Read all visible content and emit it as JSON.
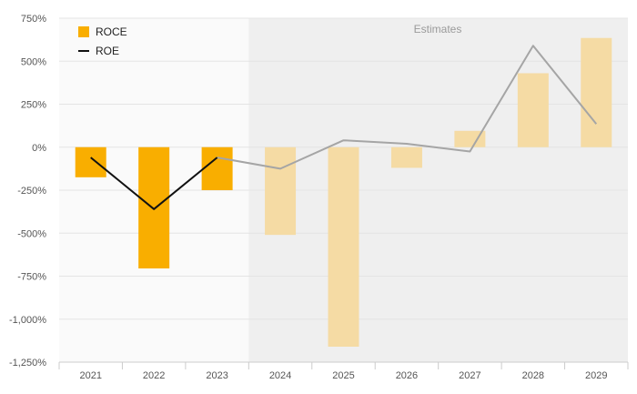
{
  "chart_data": {
    "type": "bar",
    "categories": [
      "2021",
      "2022",
      "2023",
      "2024",
      "2025",
      "2026",
      "2027",
      "2028",
      "2029"
    ],
    "series": [
      {
        "name": "ROCE",
        "kind": "bar",
        "values": [
          -175,
          -705,
          -250,
          -510,
          -1160,
          -120,
          95,
          430,
          635
        ]
      },
      {
        "name": "ROE",
        "kind": "line",
        "values": [
          -60,
          -360,
          -60,
          -125,
          40,
          20,
          -25,
          590,
          135
        ]
      }
    ],
    "ylim": [
      -1250,
      750
    ],
    "y_ticks": [
      750,
      500,
      250,
      0,
      -250,
      -500,
      -750,
      -1000,
      -1250
    ],
    "y_tick_labels": [
      "750%",
      "500%",
      "250%",
      "0%",
      "-250%",
      "-500%",
      "-750%",
      "-1,000%",
      "-1,250%"
    ],
    "estimates_label": "Estimates",
    "estimates_from_index": 3,
    "legend_position": "top-left",
    "grid": true,
    "colors": {
      "bar_actual": "#f9ae00",
      "bar_estimate": "#f5dba4",
      "line_actual": "#111111",
      "line_estimate": "#a5a5a5",
      "plot_background": "#fafafa",
      "estimates_background": "#efefef",
      "grid": "#e4e4e4",
      "axis": "#cccccc"
    }
  }
}
